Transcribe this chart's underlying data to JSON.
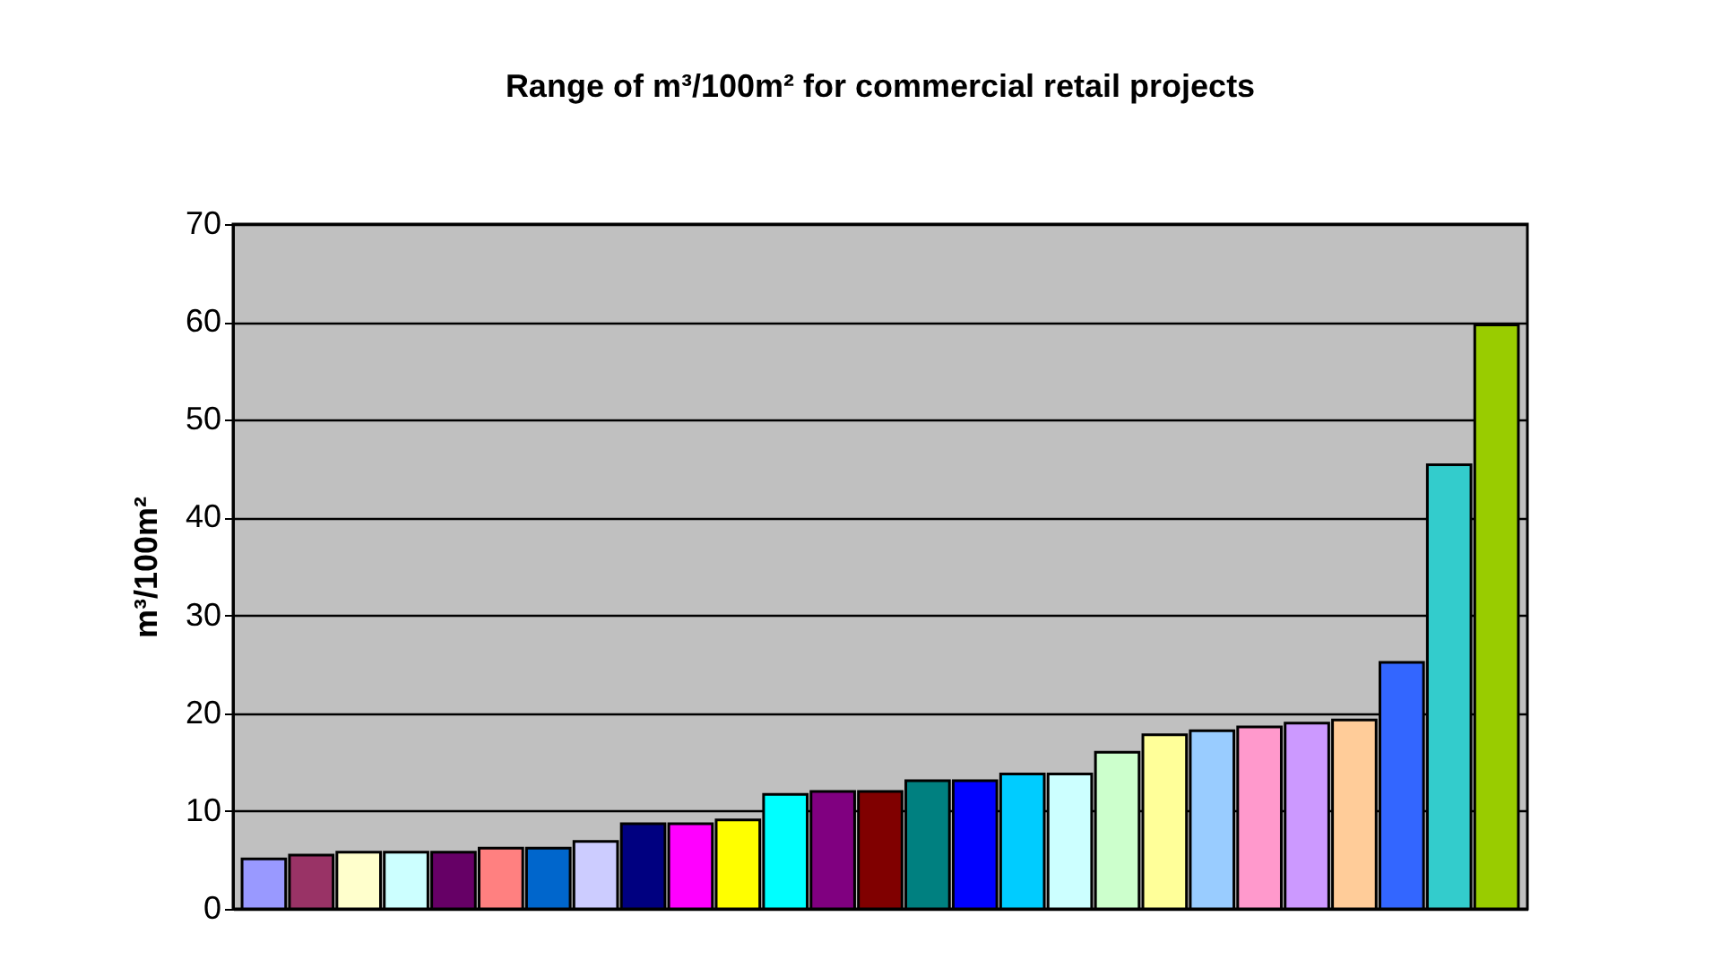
{
  "chart_data": {
    "type": "bar",
    "title": "Range of m³/100m² for commercial retail projects",
    "ylabel": "m³/100m²",
    "categories": [
      null,
      null,
      null,
      null,
      null,
      null,
      null,
      null,
      null,
      null,
      null,
      null,
      null,
      null,
      null,
      null,
      null,
      null,
      null,
      null,
      null,
      null,
      null,
      null,
      null,
      null,
      null
    ],
    "values": [
      5.1,
      5.5,
      5.8,
      5.8,
      5.8,
      6.2,
      6.2,
      6.9,
      8.7,
      8.7,
      9.1,
      11.7,
      12.0,
      12.0,
      13.1,
      13.1,
      13.8,
      13.8,
      16.0,
      17.8,
      18.2,
      18.6,
      19.0,
      19.3,
      25.2,
      45.4,
      59.7
    ],
    "colors": [
      "#9999ff",
      "#993366",
      "#ffffcc",
      "#ccffff",
      "#660066",
      "#ff8080",
      "#0066cc",
      "#ccccff",
      "#000080",
      "#ff00ff",
      "#ffff00",
      "#00ffff",
      "#800080",
      "#800000",
      "#008080",
      "#0000ff",
      "#00ccff",
      "#ccffff",
      "#ccffcc",
      "#ffff99",
      "#99ccff",
      "#ff99cc",
      "#cc99ff",
      "#ffcc99",
      "#3366ff",
      "#33cccc",
      "#99cc00"
    ],
    "ylim": [
      0,
      70
    ],
    "yticks": [
      0,
      10,
      20,
      30,
      40,
      50,
      60,
      70
    ],
    "grid": "y"
  }
}
